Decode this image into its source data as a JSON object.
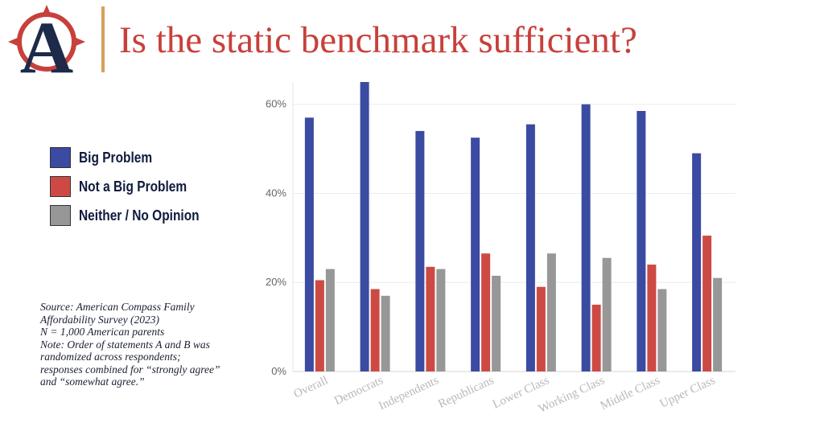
{
  "header": {
    "title": "Is the static benchmark sufficient?",
    "logo_name": "American Compass logo",
    "logo_letter": "A",
    "colors": {
      "title": "#c8403b",
      "rule": "#d9a05a",
      "logo_navy": "#1d2a4a",
      "logo_red": "#c8403b"
    }
  },
  "legend": {
    "items": [
      {
        "label": "Big Problem",
        "color": "#3a4ba1"
      },
      {
        "label": "Not a Big Problem",
        "color": "#cd4a44"
      },
      {
        "label": "Neither / No Opinion",
        "color": "#979797"
      }
    ]
  },
  "note": {
    "lines": [
      "Source: American Compass Family Affordability Survey (2023)",
      "N = 1,000 American parents",
      "Note: Order of statements A and B was randomized across respondents; responses combined for “strongly agree” and “somewhat agree.”"
    ]
  },
  "chart_data": {
    "type": "bar",
    "categories": [
      "Overall",
      "Democrats",
      "Independents",
      "Republicans",
      "Lower Class",
      "Working Class",
      "Middle Class",
      "Upper Class"
    ],
    "series": [
      {
        "name": "Big Problem",
        "color": "#3a4ba1",
        "values": [
          57,
          65,
          54,
          52.5,
          55.5,
          60,
          58.5,
          49
        ]
      },
      {
        "name": "Not a Big Problem",
        "color": "#cd4a44",
        "values": [
          20.5,
          18.5,
          23.5,
          26.5,
          19,
          15,
          24,
          30.5
        ]
      },
      {
        "name": "Neither / No Opinion",
        "color": "#979797",
        "values": [
          23,
          17,
          23,
          21.5,
          26.5,
          25.5,
          18.5,
          21
        ]
      }
    ],
    "yticks": [
      0,
      20,
      40,
      60
    ],
    "ytick_labels": [
      "0%",
      "20%",
      "40%",
      "60%"
    ],
    "ylim": [
      0,
      65
    ],
    "xlabel": "",
    "ylabel": "",
    "grid": true,
    "legend_placement": "left"
  }
}
